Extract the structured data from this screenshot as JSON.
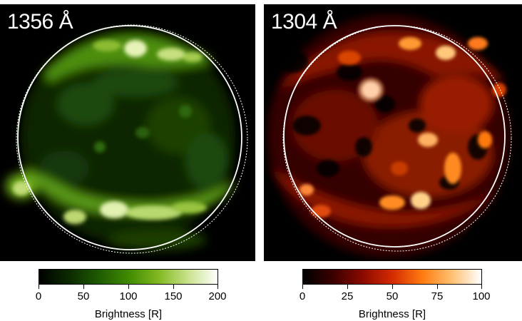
{
  "panels": [
    {
      "label": "1356 Å",
      "colorbar": {
        "ticks": [
          "0",
          "50",
          "100",
          "150",
          "200"
        ],
        "title": "Brightness [R]",
        "colors": [
          "#000000",
          "#0b2a00",
          "#1f5a00",
          "#3f8a00",
          "#80b820",
          "#c8e28a",
          "#ffffff"
        ]
      }
    },
    {
      "label": "1304 Å",
      "colorbar": {
        "ticks": [
          "0",
          "25",
          "50",
          "75",
          "100"
        ],
        "title": "Brightness [R]",
        "colors": [
          "#000000",
          "#3a0000",
          "#8a0a00",
          "#d42a00",
          "#ff7a10",
          "#ffc070",
          "#ffffff"
        ]
      }
    }
  ]
}
